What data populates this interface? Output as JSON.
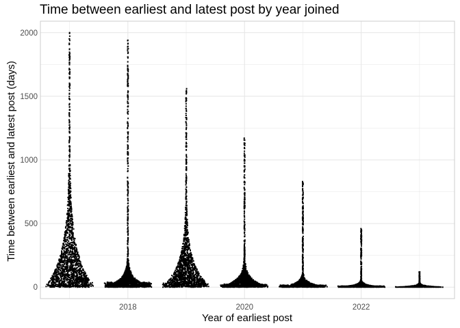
{
  "chart_data": {
    "type": "scatter",
    "subtype": "beeswarm",
    "title": "Time between earliest and latest post by year joined",
    "xlabel": "Year of earliest post",
    "ylabel": "Time between earliest and latest post (days)",
    "xlim": [
      2016.5,
      2023.6
    ],
    "ylim": [
      -90,
      2090
    ],
    "x_ticks": [
      2018,
      2020,
      2022
    ],
    "y_ticks": [
      0,
      500,
      1000,
      1500,
      2000
    ],
    "grid": true,
    "point_color": "#000000",
    "grid_color": "#e5e5e5",
    "panel_border_color": "#cccccc",
    "groups": [
      {
        "year": 2017,
        "max": 2000,
        "median_est": 90
      },
      {
        "year": 2018,
        "max": 1940,
        "median_est": 20
      },
      {
        "year": 2019,
        "max": 1560,
        "median_est": 60
      },
      {
        "year": 2020,
        "max": 1170,
        "median_est": 20
      },
      {
        "year": 2021,
        "max": 830,
        "median_est": 10
      },
      {
        "year": 2022,
        "max": 460,
        "median_est": 5
      },
      {
        "year": 2023,
        "max": 120,
        "median_est": 2
      }
    ]
  }
}
